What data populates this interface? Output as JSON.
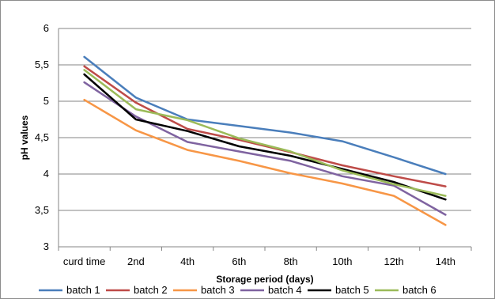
{
  "chart_data": {
    "type": "line",
    "title": "",
    "xlabel": "Storage period (days)",
    "ylabel": "pH values",
    "categories": [
      "curd time",
      "2nd",
      "4th",
      "6th",
      "8th",
      "10th",
      "12th",
      "14th"
    ],
    "ylim": [
      3,
      6
    ],
    "yticks": [
      "3",
      "3,5",
      "4",
      "4,5",
      "5",
      "5,5",
      "6"
    ],
    "ytick_values": [
      3,
      3.5,
      4,
      4.5,
      5,
      5.5,
      6
    ],
    "grid": true,
    "legend_position": "bottom",
    "series": [
      {
        "name": "batch 1",
        "color": "#4a7ebb",
        "values": [
          5.61,
          5.05,
          4.75,
          4.66,
          4.57,
          4.45,
          4.23,
          4.0
        ]
      },
      {
        "name": "batch 2",
        "color": "#be4b48",
        "values": [
          5.48,
          4.98,
          4.62,
          4.47,
          4.3,
          4.12,
          3.97,
          3.83
        ]
      },
      {
        "name": "batch 3",
        "color": "#f79646",
        "values": [
          5.02,
          4.6,
          4.33,
          4.18,
          4.01,
          3.87,
          3.7,
          3.3
        ]
      },
      {
        "name": "batch 4",
        "color": "#7f63a0",
        "values": [
          5.26,
          4.79,
          4.44,
          4.31,
          4.18,
          3.97,
          3.84,
          3.44
        ]
      },
      {
        "name": "batch 5",
        "color": "#000000",
        "values": [
          5.37,
          4.75,
          4.59,
          4.38,
          4.25,
          4.07,
          3.89,
          3.65
        ]
      },
      {
        "name": "batch 6",
        "color": "#9bbb59",
        "values": [
          5.43,
          4.89,
          4.74,
          4.49,
          4.31,
          4.05,
          3.86,
          3.7
        ]
      }
    ]
  }
}
